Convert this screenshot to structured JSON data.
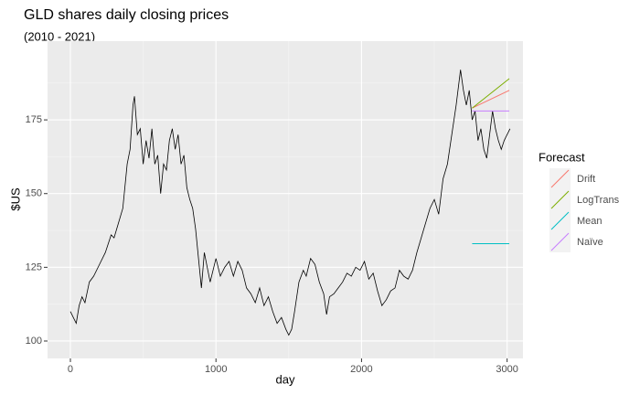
{
  "chart_data": {
    "type": "line",
    "title": "GLD shares daily closing prices",
    "subtitle": "(2010 - 2021)",
    "x_label": "day",
    "y_label": "$US",
    "legend_title": "Forecast",
    "legend_position": "right",
    "grid": true,
    "xlim": [
      -157,
      3109
    ],
    "ylim": [
      94.1,
      201.7
    ],
    "xticks": [
      0,
      1000,
      2000,
      3000
    ],
    "yticks": [
      100,
      125,
      150,
      175
    ],
    "x_minor_ticks": [
      500,
      1500,
      2500
    ],
    "y_minor_ticks": [
      112.5,
      137.5,
      162.5,
      187.5
    ],
    "color": "#000000",
    "x": [
      0,
      20,
      40,
      60,
      80,
      100,
      130,
      160,
      200,
      240,
      280,
      300,
      330,
      360,
      390,
      410,
      430,
      440,
      460,
      480,
      500,
      520,
      540,
      560,
      580,
      600,
      620,
      640,
      660,
      680,
      700,
      720,
      740,
      760,
      780,
      800,
      820,
      840,
      860,
      880,
      900,
      920,
      940,
      960,
      980,
      1000,
      1030,
      1060,
      1090,
      1120,
      1150,
      1180,
      1210,
      1240,
      1270,
      1300,
      1330,
      1360,
      1390,
      1420,
      1450,
      1480,
      1500,
      1520,
      1540,
      1570,
      1600,
      1620,
      1650,
      1680,
      1710,
      1740,
      1760,
      1780,
      1810,
      1840,
      1870,
      1900,
      1930,
      1960,
      1990,
      2020,
      2050,
      2080,
      2110,
      2140,
      2170,
      2200,
      2230,
      2260,
      2290,
      2320,
      2350,
      2380,
      2410,
      2440,
      2470,
      2500,
      2530,
      2560,
      2590,
      2620,
      2650,
      2670,
      2680,
      2700,
      2720,
      2740,
      2760,
      2780,
      2800,
      2820,
      2840,
      2860,
      2880,
      2900,
      2920,
      2940,
      2960,
      2980,
      3000,
      3020
    ],
    "values": [
      110,
      108,
      106,
      112,
      115,
      113,
      120,
      122,
      126,
      130,
      136,
      135,
      140,
      145,
      160,
      165,
      180,
      183,
      170,
      172,
      160,
      168,
      162,
      172,
      160,
      163,
      150,
      160,
      158,
      168,
      172,
      165,
      170,
      160,
      163,
      152,
      148,
      145,
      138,
      128,
      118,
      130,
      125,
      120,
      124,
      128,
      122,
      125,
      127,
      122,
      127,
      124,
      118,
      116,
      113,
      118,
      112,
      115,
      110,
      106,
      108,
      104,
      102,
      104,
      110,
      120,
      124,
      122,
      128,
      126,
      120,
      116,
      109,
      115,
      116,
      118,
      120,
      123,
      122,
      125,
      124,
      127,
      121,
      123,
      117,
      112,
      114,
      117,
      118,
      124,
      122,
      121,
      124,
      130,
      135,
      140,
      145,
      148,
      143,
      155,
      160,
      170,
      180,
      188,
      192,
      185,
      180,
      185,
      175,
      178,
      168,
      172,
      165,
      162,
      170,
      178,
      172,
      168,
      165,
      168,
      170,
      172
    ],
    "series": [
      {
        "name": "Drift",
        "color": "#f8766d",
        "x": [
          2760,
          3015
        ],
        "values": [
          179,
          185
        ]
      },
      {
        "name": "LogTrans",
        "color": "#7cae00",
        "x": [
          2760,
          3015
        ],
        "values": [
          179,
          189
        ]
      },
      {
        "name": "Mean",
        "color": "#00bfc4",
        "x": [
          2760,
          3015
        ],
        "values": [
          133,
          133
        ]
      },
      {
        "name": "Naïve",
        "color": "#c77cff",
        "x": [
          2760,
          3015
        ],
        "values": [
          178,
          178
        ]
      }
    ]
  }
}
